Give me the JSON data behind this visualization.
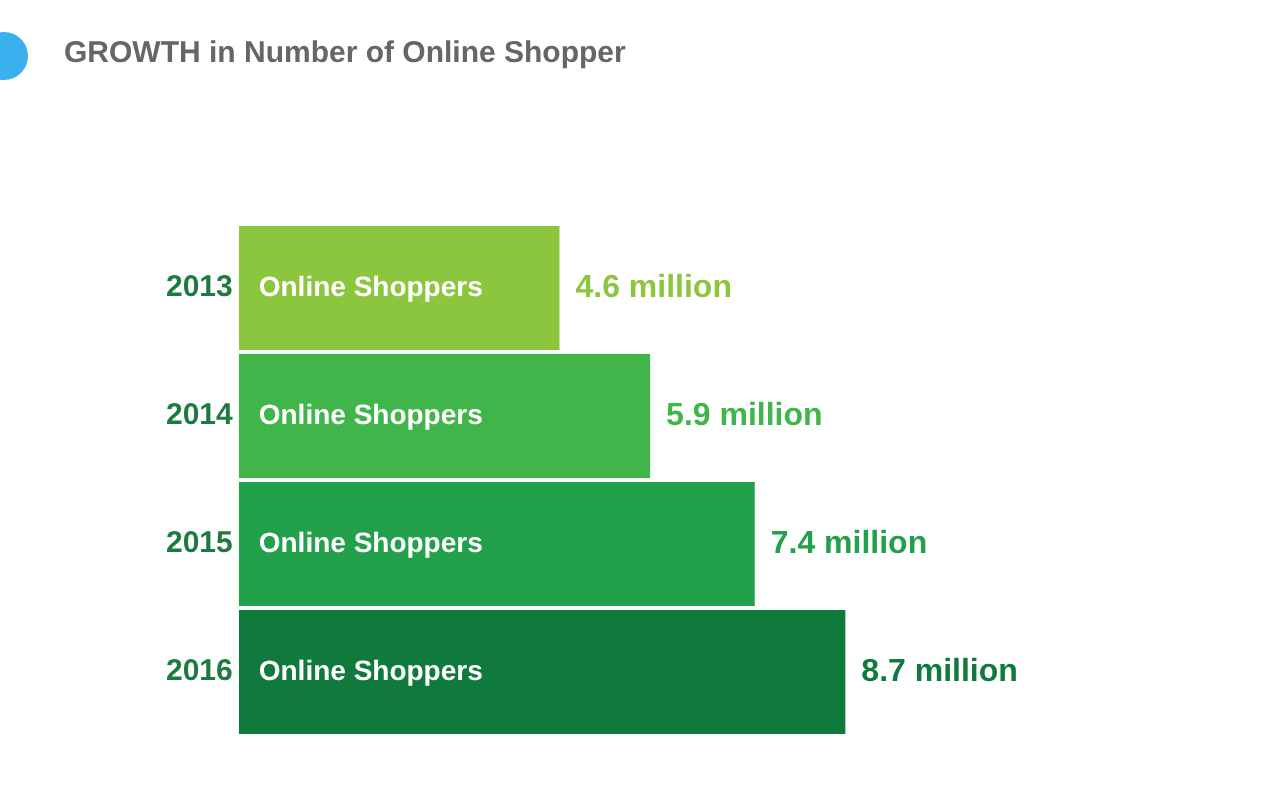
{
  "chart_data": {
    "type": "bar",
    "orientation": "horizontal",
    "title": "GROWTH in Number of Online Shopper",
    "categories": [
      "2013",
      "2014",
      "2015",
      "2016"
    ],
    "series": [
      {
        "name": "Online Shoppers",
        "colors": [
          "#8cc63e",
          "#3fb54a",
          "#22a04a",
          "#107a3c"
        ],
        "values": [
          4.6,
          5.9,
          7.4,
          8.7
        ],
        "value_labels": [
          "4.6 million",
          "5.9 million",
          "7.4 million",
          "8.7 million"
        ]
      }
    ],
    "legend": false,
    "grid": false,
    "tick_labels": "y"
  }
}
